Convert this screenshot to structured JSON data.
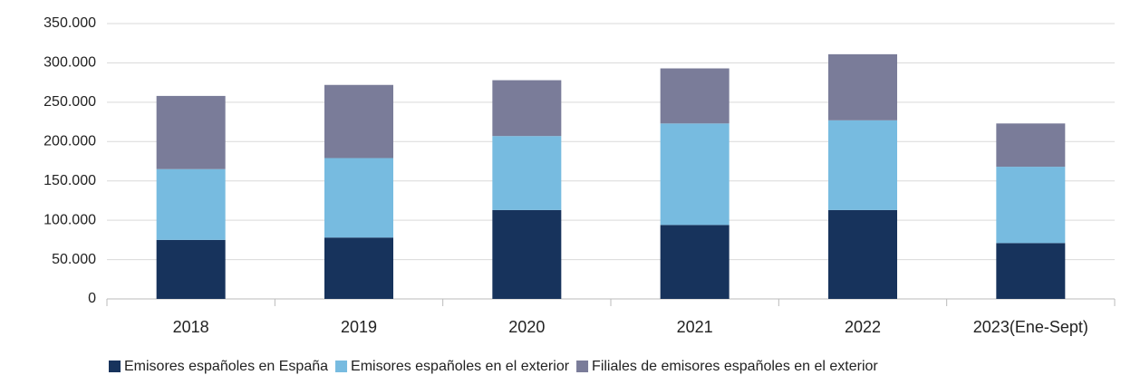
{
  "chart_data": {
    "type": "stacked_bar",
    "categories": [
      "2018",
      "2019",
      "2020",
      "2021",
      "2022",
      "2023(Ene-Sept)"
    ],
    "series": [
      {
        "name": "Emisores españoles en España",
        "color": "#17335c",
        "values": [
          75000,
          78000,
          113000,
          94000,
          113000,
          71000
        ]
      },
      {
        "name": "Emisores españoles en el exterior",
        "color": "#77bbe0",
        "values": [
          90000,
          101000,
          94000,
          129000,
          114000,
          97000
        ]
      },
      {
        "name": "Filiales de emisores españoles en el exterior",
        "color": "#7a7c99",
        "values": [
          93000,
          93000,
          71000,
          70000,
          84000,
          55000
        ]
      }
    ],
    "ylim": [
      0,
      350000
    ],
    "yticks": [
      0,
      {
        "value": 50000,
        "label": "50.000"
      },
      {
        "value": 100000,
        "label": "100.000"
      },
      {
        "value": 150000,
        "label": "150.000"
      },
      {
        "value": 200000,
        "label": "200.000"
      },
      {
        "value": 250000,
        "label": "250.000"
      },
      {
        "value": 300000,
        "label": "300.000"
      },
      {
        "value": 350000,
        "label": "350.000"
      }
    ],
    "grid": true,
    "legend": "bottom"
  }
}
